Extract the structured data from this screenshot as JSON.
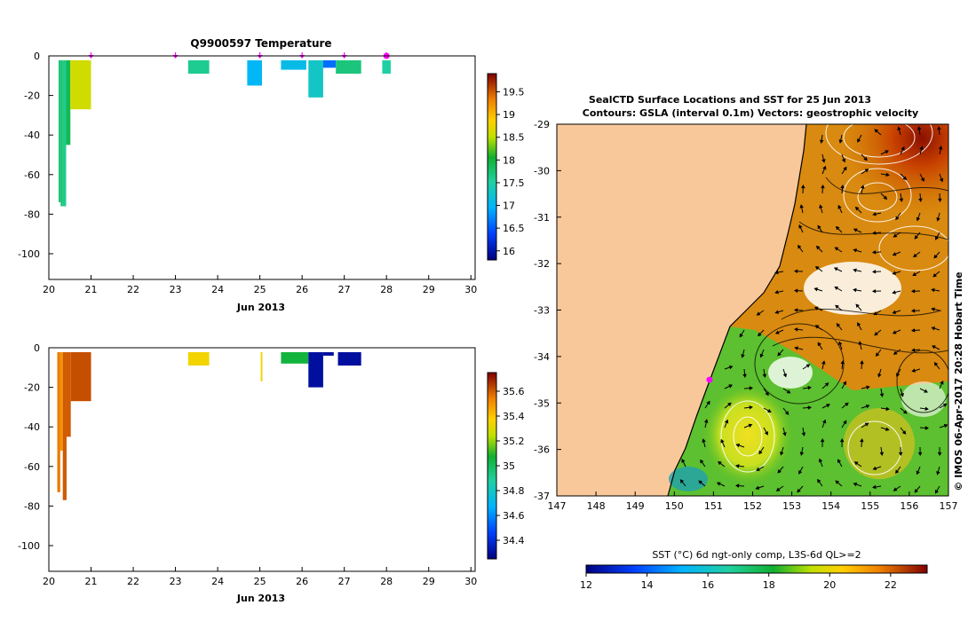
{
  "colors": {
    "land": "#f9c89a",
    "frame": "#000000",
    "marker": "#ff00ff"
  },
  "chart_data": [
    {
      "type": "heatmap",
      "title": "Q9900597  Temperature",
      "xlabel": "Jun 2013",
      "ylabel": "",
      "xlim": [
        20,
        30.1
      ],
      "ylim": [
        -113,
        0
      ],
      "x_ticks": [
        "20",
        "21",
        "22",
        "23",
        "24",
        "25",
        "26",
        "27",
        "28",
        "29",
        "30"
      ],
      "y_ticks": [
        "0",
        "-20",
        "-40",
        "-60",
        "-80",
        "-100"
      ],
      "profile_markers_x": [
        21.0,
        23.0,
        25.0,
        26.0,
        27.0,
        28.0
      ],
      "colorbar": {
        "min": 15.8,
        "max": 19.9,
        "ticks": [
          "16",
          "16.5",
          "17",
          "17.5",
          "18",
          "18.5",
          "19",
          "19.5"
        ]
      },
      "profiles": [
        {
          "x0": 20.23,
          "x1": 20.28,
          "depth": 74,
          "value": 17.7
        },
        {
          "x0": 20.28,
          "x1": 20.33,
          "depth": 76,
          "value": 17.8
        },
        {
          "x0": 20.33,
          "x1": 20.41,
          "depth": 76,
          "value": 17.6
        },
        {
          "x0": 20.41,
          "x1": 20.51,
          "depth": 45,
          "value": 17.9
        },
        {
          "x0": 20.51,
          "x1": 21.0,
          "depth": 27,
          "value": 18.6
        },
        {
          "x0": 23.3,
          "x1": 23.8,
          "depth": 9,
          "value": 17.6
        },
        {
          "x0": 24.7,
          "x1": 25.05,
          "depth": 15,
          "value": 17.0
        },
        {
          "x0": 25.5,
          "x1": 26.1,
          "depth": 7,
          "value": 17.1
        },
        {
          "x0": 26.15,
          "x1": 26.5,
          "depth": 21,
          "value": 17.3
        },
        {
          "x0": 26.5,
          "x1": 26.8,
          "depth": 6,
          "value": 16.6
        },
        {
          "x0": 26.8,
          "x1": 27.4,
          "depth": 9,
          "value": 17.7
        },
        {
          "x0": 27.9,
          "x1": 28.1,
          "depth": 9,
          "value": 17.5
        }
      ]
    },
    {
      "type": "heatmap",
      "title": "",
      "xlabel": "Jun 2013",
      "ylabel": "",
      "xlim": [
        20,
        30.1
      ],
      "ylim": [
        -113,
        0
      ],
      "x_ticks": [
        "20",
        "21",
        "22",
        "23",
        "24",
        "25",
        "26",
        "27",
        "28",
        "29",
        "30"
      ],
      "y_ticks": [
        "0",
        "-20",
        "-40",
        "-60",
        "-80",
        "-100"
      ],
      "colorbar": {
        "min": 34.25,
        "max": 35.75,
        "ticks": [
          "34.4",
          "34.6",
          "34.8",
          "35",
          "35.2",
          "35.4",
          "35.6"
        ]
      },
      "profiles": [
        {
          "x0": 20.2,
          "x1": 20.27,
          "depth": 73,
          "value": 35.55
        },
        {
          "x0": 20.27,
          "x1": 20.33,
          "depth": 52,
          "value": 35.5
        },
        {
          "x0": 20.33,
          "x1": 20.42,
          "depth": 77,
          "value": 35.6
        },
        {
          "x0": 20.42,
          "x1": 20.52,
          "depth": 45,
          "value": 35.6
        },
        {
          "x0": 20.52,
          "x1": 21.0,
          "depth": 27,
          "value": 35.62
        },
        {
          "x0": 23.3,
          "x1": 23.8,
          "depth": 9,
          "value": 35.35
        },
        {
          "x0": 25.02,
          "x1": 25.06,
          "depth": 17,
          "value": 35.35
        },
        {
          "x0": 25.5,
          "x1": 26.15,
          "depth": 8,
          "value": 35.05
        },
        {
          "x0": 26.15,
          "x1": 26.5,
          "depth": 20,
          "value": 34.3
        },
        {
          "x0": 26.5,
          "x1": 26.75,
          "depth": 4,
          "value": 34.3
        },
        {
          "x0": 26.85,
          "x1": 27.4,
          "depth": 9,
          "value": 34.3
        }
      ]
    },
    {
      "type": "heatmap",
      "title": "SealCTD Surface Locations and SST for 25 Jun 2013",
      "subtitle": "Contours: GSLA (interval 0.1m) Vectors: geostrophic velocity",
      "xlabel": "",
      "ylabel": "",
      "xlim": [
        147,
        157
      ],
      "ylim": [
        -37,
        -29
      ],
      "x_ticks": [
        "147",
        "148",
        "149",
        "150",
        "151",
        "152",
        "153",
        "154",
        "155",
        "156",
        "157"
      ],
      "y_ticks": [
        "-29",
        "-30",
        "-31",
        "-32",
        "-33",
        "-34",
        "-35",
        "-36",
        "-37"
      ],
      "colorbar": {
        "label": "SST (°C) 6d ngt-only comp, L3S-6d QL>=2",
        "min": 12,
        "max": 23.2,
        "ticks": [
          "12",
          "14",
          "16",
          "18",
          "20",
          "22"
        ]
      },
      "seal_location": {
        "lon": 150.9,
        "lat": -34.5
      },
      "credit": "© IMOS 06-Apr-2017 20:28 Hobart Time"
    }
  ]
}
